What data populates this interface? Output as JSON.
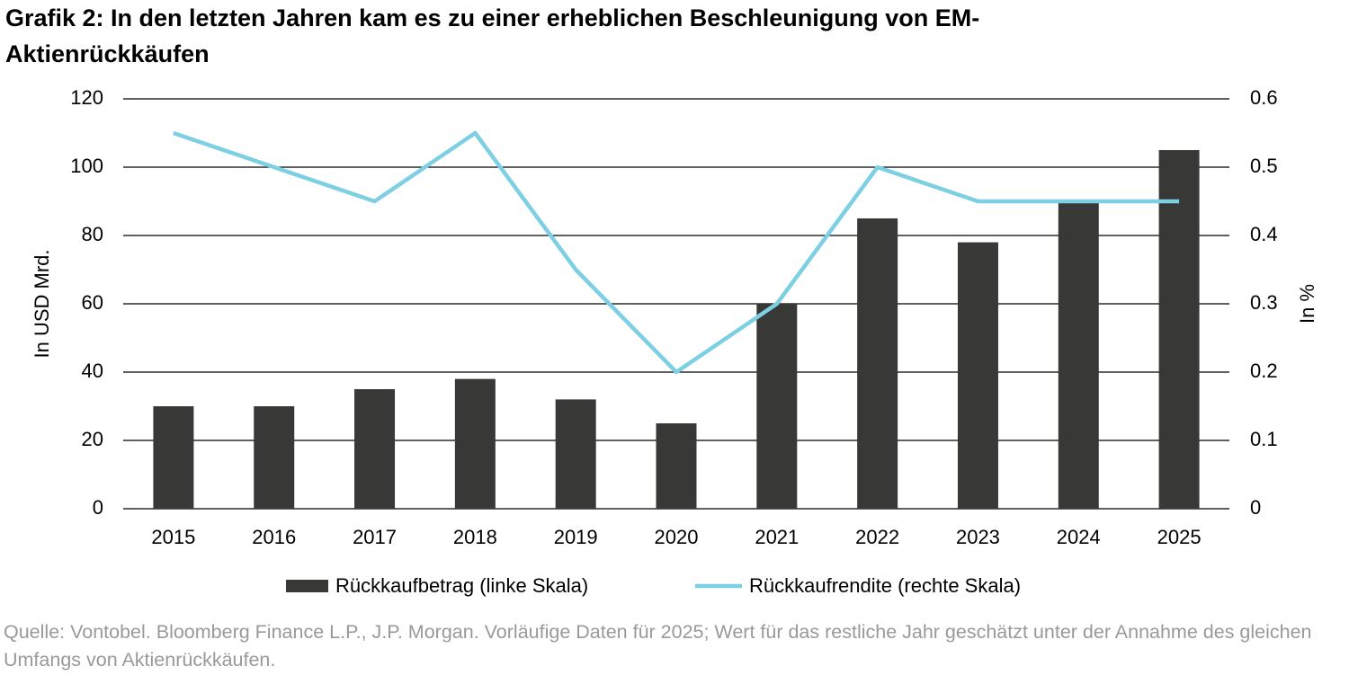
{
  "chart_data": {
    "type": "bar",
    "title": "Grafik 2: In den letzten Jahren kam es zu einer erheblichen Beschleunigung von EM-Aktienrückkäufen",
    "categories": [
      "2015",
      "2016",
      "2017",
      "2018",
      "2019",
      "2020",
      "2021",
      "2022",
      "2023",
      "2024",
      "2025"
    ],
    "series": [
      {
        "name": "Rückkaufbetrag (linke Skala)",
        "type": "bar",
        "color": "#383937",
        "values": [
          30,
          30,
          35,
          38,
          32,
          25,
          60,
          85,
          78,
          90,
          105
        ]
      },
      {
        "name": "Rückkaufrendite (rechte Skala)",
        "type": "line",
        "axis": "y2",
        "color": "#7dcfe3",
        "values": [
          0.55,
          0.5,
          0.45,
          0.55,
          0.35,
          0.2,
          0.3,
          0.5,
          0.45,
          0.45,
          0.45
        ]
      }
    ],
    "ylabel": "In USD Mrd.",
    "y2label": "In %",
    "ylim": [
      0,
      120
    ],
    "yticks": [
      0,
      20,
      40,
      60,
      80,
      100,
      120
    ],
    "y2lim": [
      0,
      0.6
    ],
    "y2ticks": [
      0,
      0.1,
      0.2,
      0.3,
      0.4,
      0.5,
      0.6
    ],
    "grid": true,
    "legend": "bottom",
    "source": "Quelle: Vontobel. Bloomberg Finance L.P., J.P. Morgan. Vorläufige Daten für 2025; Wert für das restliche Jahr geschätzt unter der Annahme des gleichen Umfangs von Aktienrückkäufen."
  }
}
